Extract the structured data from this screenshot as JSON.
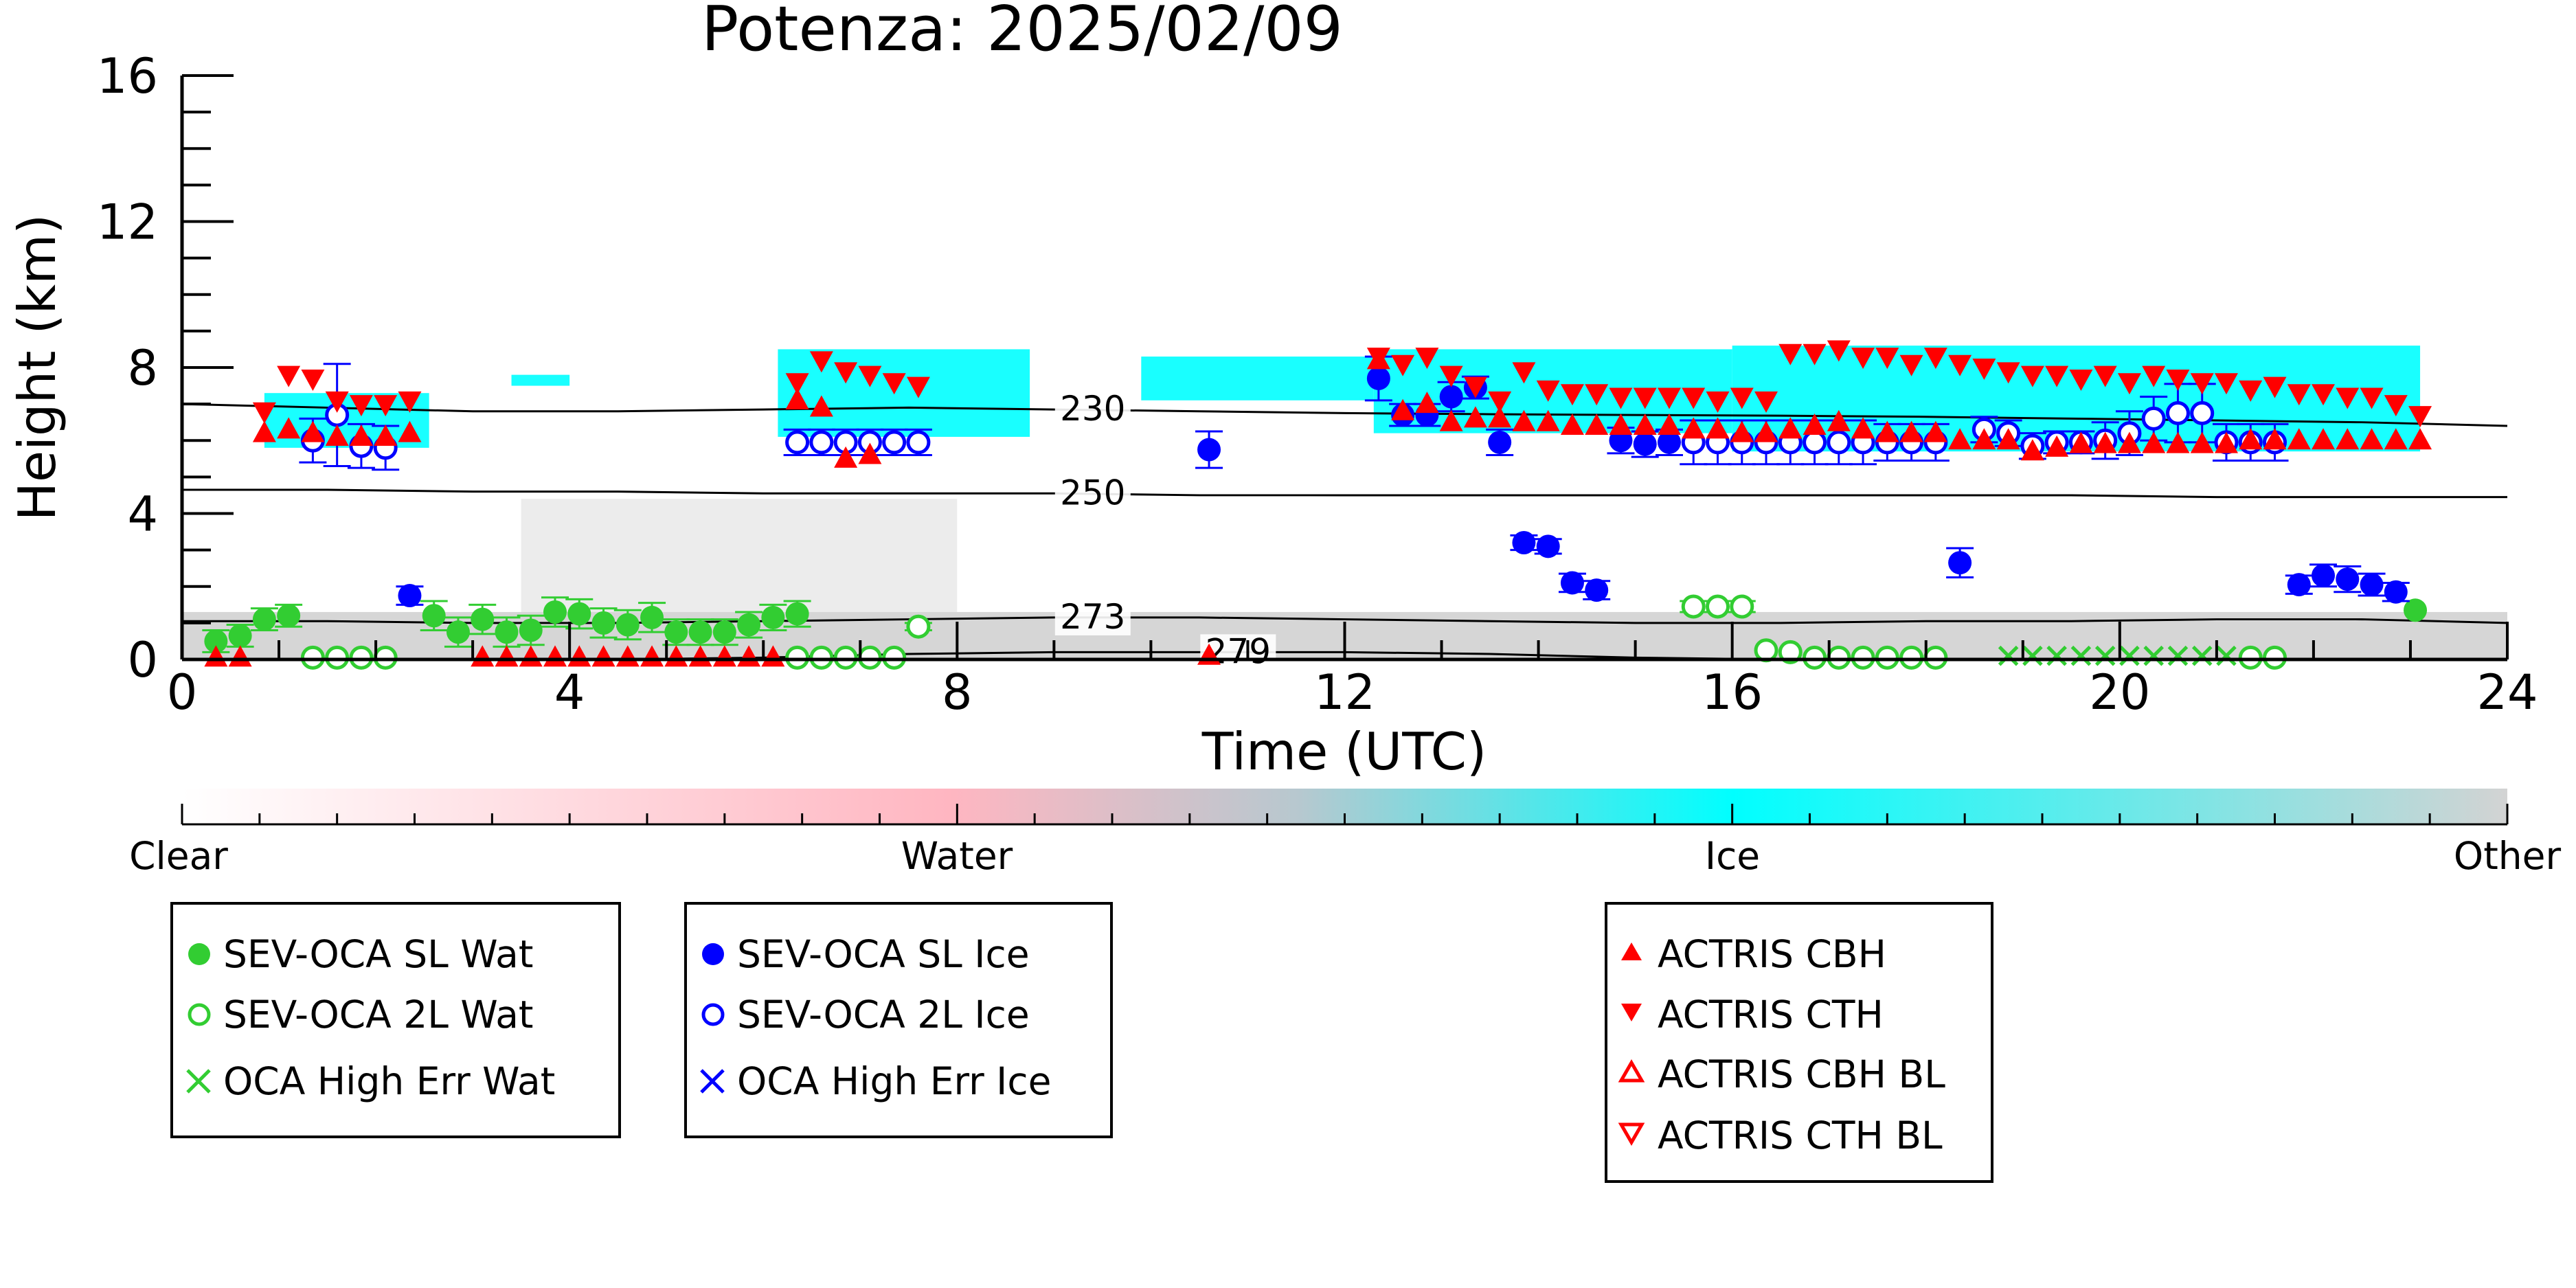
{
  "chart_data": {
    "type": "scatter",
    "title": "Potenza: 2025/02/09",
    "xlabel": "Time (UTC)",
    "ylabel": "Height (km)",
    "xlim": [
      0,
      24
    ],
    "ylim": [
      0,
      16
    ],
    "xticks": [
      "0",
      "4",
      "8",
      "12",
      "16",
      "20",
      "24"
    ],
    "yticks": [
      "0",
      "4",
      "8",
      "12",
      "16"
    ],
    "grid": false,
    "colorbar": {
      "labels": [
        "Clear",
        "Water",
        "Ice",
        "Other"
      ],
      "colors": {
        "clear": "#ffffff",
        "water": "#ffb6c1",
        "ice": "#00ffff",
        "other": "#d3d3d3"
      }
    },
    "isotherms": [
      {
        "label": "230",
        "y": [
          7.0,
          6.9,
          6.8,
          6.8,
          6.85,
          6.9,
          6.85,
          6.8,
          6.75,
          6.72,
          6.7,
          6.68,
          6.65,
          6.6,
          6.55,
          6.5,
          6.4
        ]
      },
      {
        "label": "250",
        "y": [
          4.65,
          4.65,
          4.6,
          4.6,
          4.55,
          4.55,
          4.55,
          4.5,
          4.5,
          4.5,
          4.5,
          4.5,
          4.5,
          4.5,
          4.45,
          4.45,
          4.45
        ]
      },
      {
        "label": "273",
        "y": [
          1.05,
          1.05,
          1.0,
          1.0,
          1.05,
          1.1,
          1.15,
          1.15,
          1.1,
          1.05,
          1.0,
          1.0,
          1.05,
          1.05,
          1.1,
          1.1,
          1.0
        ]
      },
      {
        "label": "279",
        "y": [
          -0.4,
          -0.3,
          -0.2,
          -0.1,
          0.05,
          0.15,
          0.2,
          0.2,
          0.2,
          0.15,
          0.05,
          -0.1,
          -0.3,
          -0.4,
          -0.5,
          -0.55,
          -0.6
        ]
      }
    ],
    "legend": {
      "water": [
        "SEV-OCA SL Wat",
        "SEV-OCA 2L Wat",
        "OCA High Err Wat"
      ],
      "ice": [
        "SEV-OCA SL Ice",
        "SEV-OCA 2L Ice",
        "OCA High Err Ice"
      ],
      "actris": [
        "ACTRIS CBH",
        "ACTRIS CTH",
        "ACTRIS CBH BL",
        "ACTRIS CTH BL"
      ]
    },
    "colors": {
      "water": "#32cd32",
      "ice": "#0000ff",
      "actris": "#ff0000",
      "cloud_ice": "#00ffff",
      "cloud_other": "#c8c8c8"
    },
    "series": [
      {
        "name": "SEV-OCA SL Wat",
        "color": "#32cd32",
        "x": [
          0.35,
          0.6,
          0.85,
          1.1,
          2.6,
          2.85,
          3.1,
          3.35,
          3.6,
          3.85,
          4.1,
          4.35,
          4.6,
          4.85,
          5.1,
          5.35,
          5.6,
          5.85,
          6.1,
          6.35,
          23.05
        ],
        "y": [
          0.5,
          0.65,
          1.1,
          1.2,
          1.2,
          0.75,
          1.1,
          0.75,
          0.8,
          1.3,
          1.25,
          1.0,
          0.95,
          1.15,
          0.75,
          0.75,
          0.75,
          0.95,
          1.15,
          1.25,
          1.35
        ],
        "err": [
          0.3,
          0.3,
          0.3,
          0.3,
          0.4,
          0.4,
          0.4,
          0.4,
          0.4,
          0.4,
          0.4,
          0.4,
          0.4,
          0.4,
          0.35,
          0.35,
          0.35,
          0.35,
          0.35,
          0.35,
          0.0
        ]
      },
      {
        "name": "SEV-OCA 2L Wat",
        "color": "#32cd32",
        "x": [
          1.35,
          1.6,
          1.85,
          2.1,
          6.35,
          6.6,
          6.85,
          7.1,
          7.35,
          7.6,
          15.6,
          15.85,
          16.1,
          16.35,
          16.6,
          16.85,
          17.1,
          17.35,
          17.6,
          17.85,
          18.1,
          21.35,
          21.6
        ],
        "y": [
          0.05,
          0.05,
          0.05,
          0.05,
          0.05,
          0.05,
          0.05,
          0.05,
          0.05,
          0.9,
          1.45,
          1.45,
          1.45,
          0.25,
          0.2,
          0.05,
          0.05,
          0.05,
          0.05,
          0.05,
          0.05,
          0.05,
          0.05
        ],
        "err": [
          0,
          0,
          0,
          0,
          0,
          0,
          0,
          0,
          0,
          0.1,
          0.15,
          0.15,
          0.15,
          0,
          0,
          0,
          0,
          0,
          0,
          0,
          0,
          0,
          0
        ]
      },
      {
        "name": "OCA High Err Wat",
        "color": "#32cd32",
        "x": [
          18.85,
          19.1,
          19.35,
          19.6,
          19.85,
          20.1,
          20.35,
          20.6,
          20.85,
          21.1
        ],
        "y": [
          0.1,
          0.1,
          0.1,
          0.1,
          0.1,
          0.1,
          0.1,
          0.1,
          0.1,
          0.1
        ],
        "err": [
          0,
          0,
          0,
          0,
          0,
          0,
          0,
          0,
          0,
          0
        ]
      },
      {
        "name": "SEV-OCA SL Ice",
        "color": "#0000ff",
        "x": [
          2.35,
          10.6,
          12.35,
          12.6,
          12.85,
          13.1,
          13.35,
          13.6,
          13.85,
          14.1,
          14.35,
          14.6,
          14.85,
          15.1,
          15.35,
          18.35,
          21.85,
          22.1,
          22.35,
          22.6,
          22.85
        ],
        "y": [
          1.75,
          5.75,
          7.7,
          6.7,
          6.7,
          7.2,
          7.45,
          5.95,
          3.2,
          3.1,
          2.1,
          1.9,
          6.0,
          5.9,
          5.95,
          2.65,
          2.05,
          2.3,
          2.2,
          2.05,
          1.85
        ],
        "err": [
          0.25,
          0.5,
          0.6,
          0.3,
          0.3,
          0.4,
          0.3,
          0.35,
          0.2,
          0.2,
          0.25,
          0.25,
          0.35,
          0.35,
          0.35,
          0.4,
          0.25,
          0.3,
          0.35,
          0.3,
          0.25
        ]
      },
      {
        "name": "SEV-OCA 2L Ice",
        "color": "#0000ff",
        "x": [
          1.35,
          1.6,
          1.85,
          2.1,
          6.35,
          6.6,
          6.85,
          7.1,
          7.35,
          7.6,
          15.6,
          15.85,
          16.1,
          16.35,
          16.6,
          16.85,
          17.1,
          17.35,
          17.6,
          17.85,
          18.1,
          18.6,
          18.85,
          19.1,
          19.35,
          19.6,
          19.85,
          20.1,
          20.35,
          20.6,
          20.85,
          21.1,
          21.35,
          21.6
        ],
        "y": [
          6.0,
          6.7,
          5.85,
          5.8,
          5.95,
          5.95,
          5.95,
          5.95,
          5.95,
          5.95,
          5.95,
          5.95,
          5.95,
          5.95,
          5.95,
          5.95,
          5.95,
          5.95,
          5.95,
          5.95,
          5.95,
          6.3,
          6.2,
          5.85,
          5.95,
          5.95,
          6.0,
          6.2,
          6.6,
          6.75,
          6.75,
          5.95,
          5.95,
          5.95
        ],
        "err": [
          0.6,
          1.4,
          0.6,
          0.6,
          0.35,
          0.35,
          0.35,
          0.35,
          0.35,
          0.35,
          0.6,
          0.6,
          0.6,
          0.6,
          0.6,
          0.6,
          0.6,
          0.6,
          0.5,
          0.5,
          0.5,
          0.35,
          0.35,
          0.35,
          0.3,
          0.3,
          0.5,
          0.6,
          0.6,
          0.8,
          0.8,
          0.5,
          0.5,
          0.5
        ]
      },
      {
        "name": "ACTRIS CBH",
        "color": "#ff0000",
        "x": [
          0.85,
          1.1,
          1.35,
          1.6,
          1.85,
          2.1,
          2.35,
          6.35,
          6.6,
          6.85,
          7.1,
          12.35,
          12.6,
          12.85,
          13.1,
          13.35,
          13.6,
          13.85,
          14.1,
          14.35,
          14.6,
          14.85,
          15.1,
          15.35,
          15.6,
          15.85,
          16.1,
          16.35,
          16.6,
          16.85,
          17.1,
          17.35,
          17.6,
          17.85,
          18.1,
          18.35,
          18.6,
          18.85,
          19.1,
          19.35,
          19.6,
          19.85,
          20.1,
          20.35,
          20.6,
          20.85,
          21.1,
          21.35,
          21.6,
          21.85,
          22.1,
          22.35,
          22.6,
          22.85,
          23.1
        ],
        "y": [
          6.2,
          6.3,
          6.2,
          6.1,
          6.1,
          6.1,
          6.2,
          7.1,
          6.9,
          5.5,
          5.6,
          8.2,
          6.8,
          7.0,
          6.5,
          6.6,
          6.6,
          6.5,
          6.5,
          6.4,
          6.4,
          6.4,
          6.4,
          6.4,
          6.3,
          6.3,
          6.2,
          6.2,
          6.3,
          6.4,
          6.5,
          6.3,
          6.2,
          6.2,
          6.2,
          6.0,
          6.0,
          6.0,
          5.7,
          5.8,
          5.9,
          5.9,
          5.9,
          5.9,
          5.9,
          5.9,
          5.9,
          6.0,
          6.0,
          6.0,
          6.0,
          6.0,
          6.0,
          6.0,
          6.0
        ],
        "err": []
      },
      {
        "name": "ACTRIS CBH BL",
        "color": "#ff0000",
        "x": [
          0.35,
          0.6,
          3.1,
          3.35,
          3.6,
          3.85,
          4.1,
          4.35,
          4.6,
          4.85,
          5.1,
          5.35,
          5.6,
          5.85,
          6.1,
          10.6
        ],
        "y": [
          0.05,
          0.05,
          0.05,
          0.05,
          0.05,
          0.05,
          0.05,
          0.05,
          0.05,
          0.05,
          0.05,
          0.05,
          0.05,
          0.05,
          0.05,
          0.1
        ],
        "err": []
      },
      {
        "name": "ACTRIS CTH",
        "color": "#ff0000",
        "x": [
          0.85,
          1.1,
          1.35,
          1.6,
          1.85,
          2.1,
          2.35,
          6.35,
          6.6,
          6.85,
          7.1,
          7.35,
          7.6,
          12.35,
          12.6,
          12.85,
          13.1,
          13.35,
          13.6,
          13.85,
          14.1,
          14.35,
          14.6,
          14.85,
          15.1,
          15.35,
          15.6,
          15.85,
          16.1,
          16.35,
          16.6,
          16.85,
          17.1,
          17.35,
          17.6,
          17.85,
          18.1,
          18.35,
          18.6,
          18.85,
          19.1,
          19.35,
          19.6,
          19.85,
          20.1,
          20.35,
          20.6,
          20.85,
          21.1,
          21.35,
          21.6,
          21.85,
          22.1,
          22.35,
          22.6,
          22.85,
          23.1
        ],
        "y": [
          6.8,
          7.8,
          7.7,
          7.1,
          7.0,
          7.0,
          7.1,
          7.6,
          8.2,
          7.9,
          7.8,
          7.6,
          7.5,
          8.3,
          8.1,
          8.3,
          7.8,
          7.5,
          7.1,
          7.9,
          7.4,
          7.3,
          7.3,
          7.2,
          7.2,
          7.2,
          7.2,
          7.1,
          7.2,
          7.1,
          8.4,
          8.4,
          8.5,
          8.3,
          8.3,
          8.1,
          8.3,
          8.1,
          8.0,
          7.9,
          7.8,
          7.8,
          7.7,
          7.8,
          7.6,
          7.8,
          7.7,
          7.6,
          7.6,
          7.4,
          7.5,
          7.3,
          7.3,
          7.2,
          7.2,
          7.0,
          6.7
        ],
        "err": []
      }
    ],
    "cloud_mask": {
      "ice": [
        {
          "x": [
            0.85,
            2.55
          ],
          "y": [
            5.8,
            7.3
          ]
        },
        {
          "x": [
            6.15,
            8.75
          ],
          "y": [
            6.1,
            8.5
          ]
        },
        {
          "x": [
            9.9,
            12.3
          ],
          "y": [
            7.1,
            8.3
          ]
        },
        {
          "x": [
            12.3,
            16.0
          ],
          "y": [
            6.2,
            8.5
          ]
        },
        {
          "x": [
            16.0,
            23.1
          ],
          "y": [
            5.7,
            8.6
          ]
        },
        {
          "x": [
            3.4,
            4.0
          ],
          "y": [
            7.5,
            7.8
          ]
        }
      ],
      "other": [
        {
          "x": [
            0.0,
            24.0
          ],
          "y": [
            0.0,
            1.3
          ]
        },
        {
          "x": [
            3.5,
            8.0
          ],
          "y": [
            1.3,
            4.4
          ]
        }
      ]
    }
  }
}
